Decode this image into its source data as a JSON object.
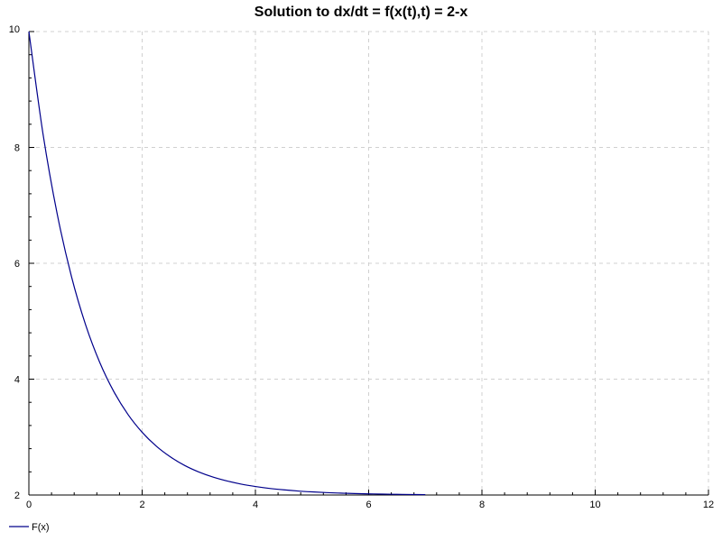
{
  "chart_data": {
    "type": "line",
    "title": "Solution to dx/dt = f(x(t),t) = 2-x",
    "xlabel": "",
    "ylabel": "",
    "xlim": [
      0,
      12
    ],
    "ylim": [
      2,
      10
    ],
    "x_ticks": [
      0,
      2,
      4,
      6,
      8,
      10,
      12
    ],
    "y_ticks": [
      2,
      4,
      6,
      8,
      10
    ],
    "grid": true,
    "legend_position": "bottom-left",
    "series": [
      {
        "name": "F(x)",
        "color": "#00008b",
        "x": [
          0,
          0.25,
          0.5,
          0.75,
          1,
          1.25,
          1.5,
          1.75,
          2,
          2.25,
          2.5,
          2.75,
          3,
          3.25,
          3.5,
          3.75,
          4,
          4.25,
          4.5,
          4.75,
          5,
          5.25,
          5.5,
          5.75,
          6,
          6.25,
          6.5,
          6.75,
          7
        ],
        "y": [
          10,
          8.23,
          6.852,
          5.779,
          4.943,
          4.292,
          3.785,
          3.39,
          3.083,
          2.843,
          2.657,
          2.511,
          2.398,
          2.31,
          2.242,
          2.188,
          2.147,
          2.114,
          2.089,
          2.069,
          2.054,
          2.042,
          2.033,
          2.025,
          2.02,
          2.015,
          2.012,
          2.009,
          2.007
        ]
      }
    ]
  }
}
